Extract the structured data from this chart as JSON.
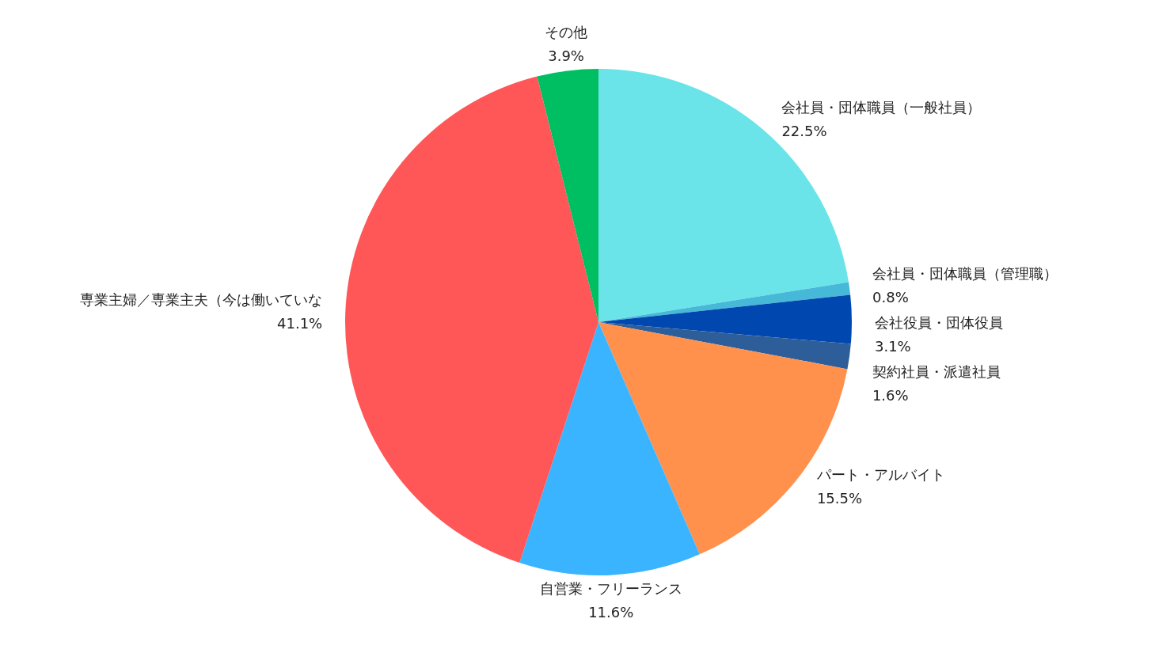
{
  "chart_data": {
    "type": "pie",
    "categories": [
      "会社員・団体職員（一般社員）",
      "会社員・団体職員（管理職）",
      "会社役員・団体役員",
      "契約社員・派遣社員",
      "パート・アルバイト",
      "自営業・フリーランス",
      "専業主婦／専業主夫（今は働いていな",
      "その他"
    ],
    "values": [
      22.5,
      0.8,
      3.1,
      1.6,
      15.5,
      11.6,
      41.1,
      3.9
    ],
    "colors": [
      "#6ae4e8",
      "#46b8d8",
      "#0048b0",
      "#2e5e9a",
      "#ff914d",
      "#3bb4ff",
      "#ff5757",
      "#00bf63"
    ],
    "value_labels": [
      "22.5%",
      "0.8%",
      "3.1%",
      "1.6%",
      "15.5%",
      "11.6%",
      "41.1%",
      "3.9%"
    ]
  }
}
